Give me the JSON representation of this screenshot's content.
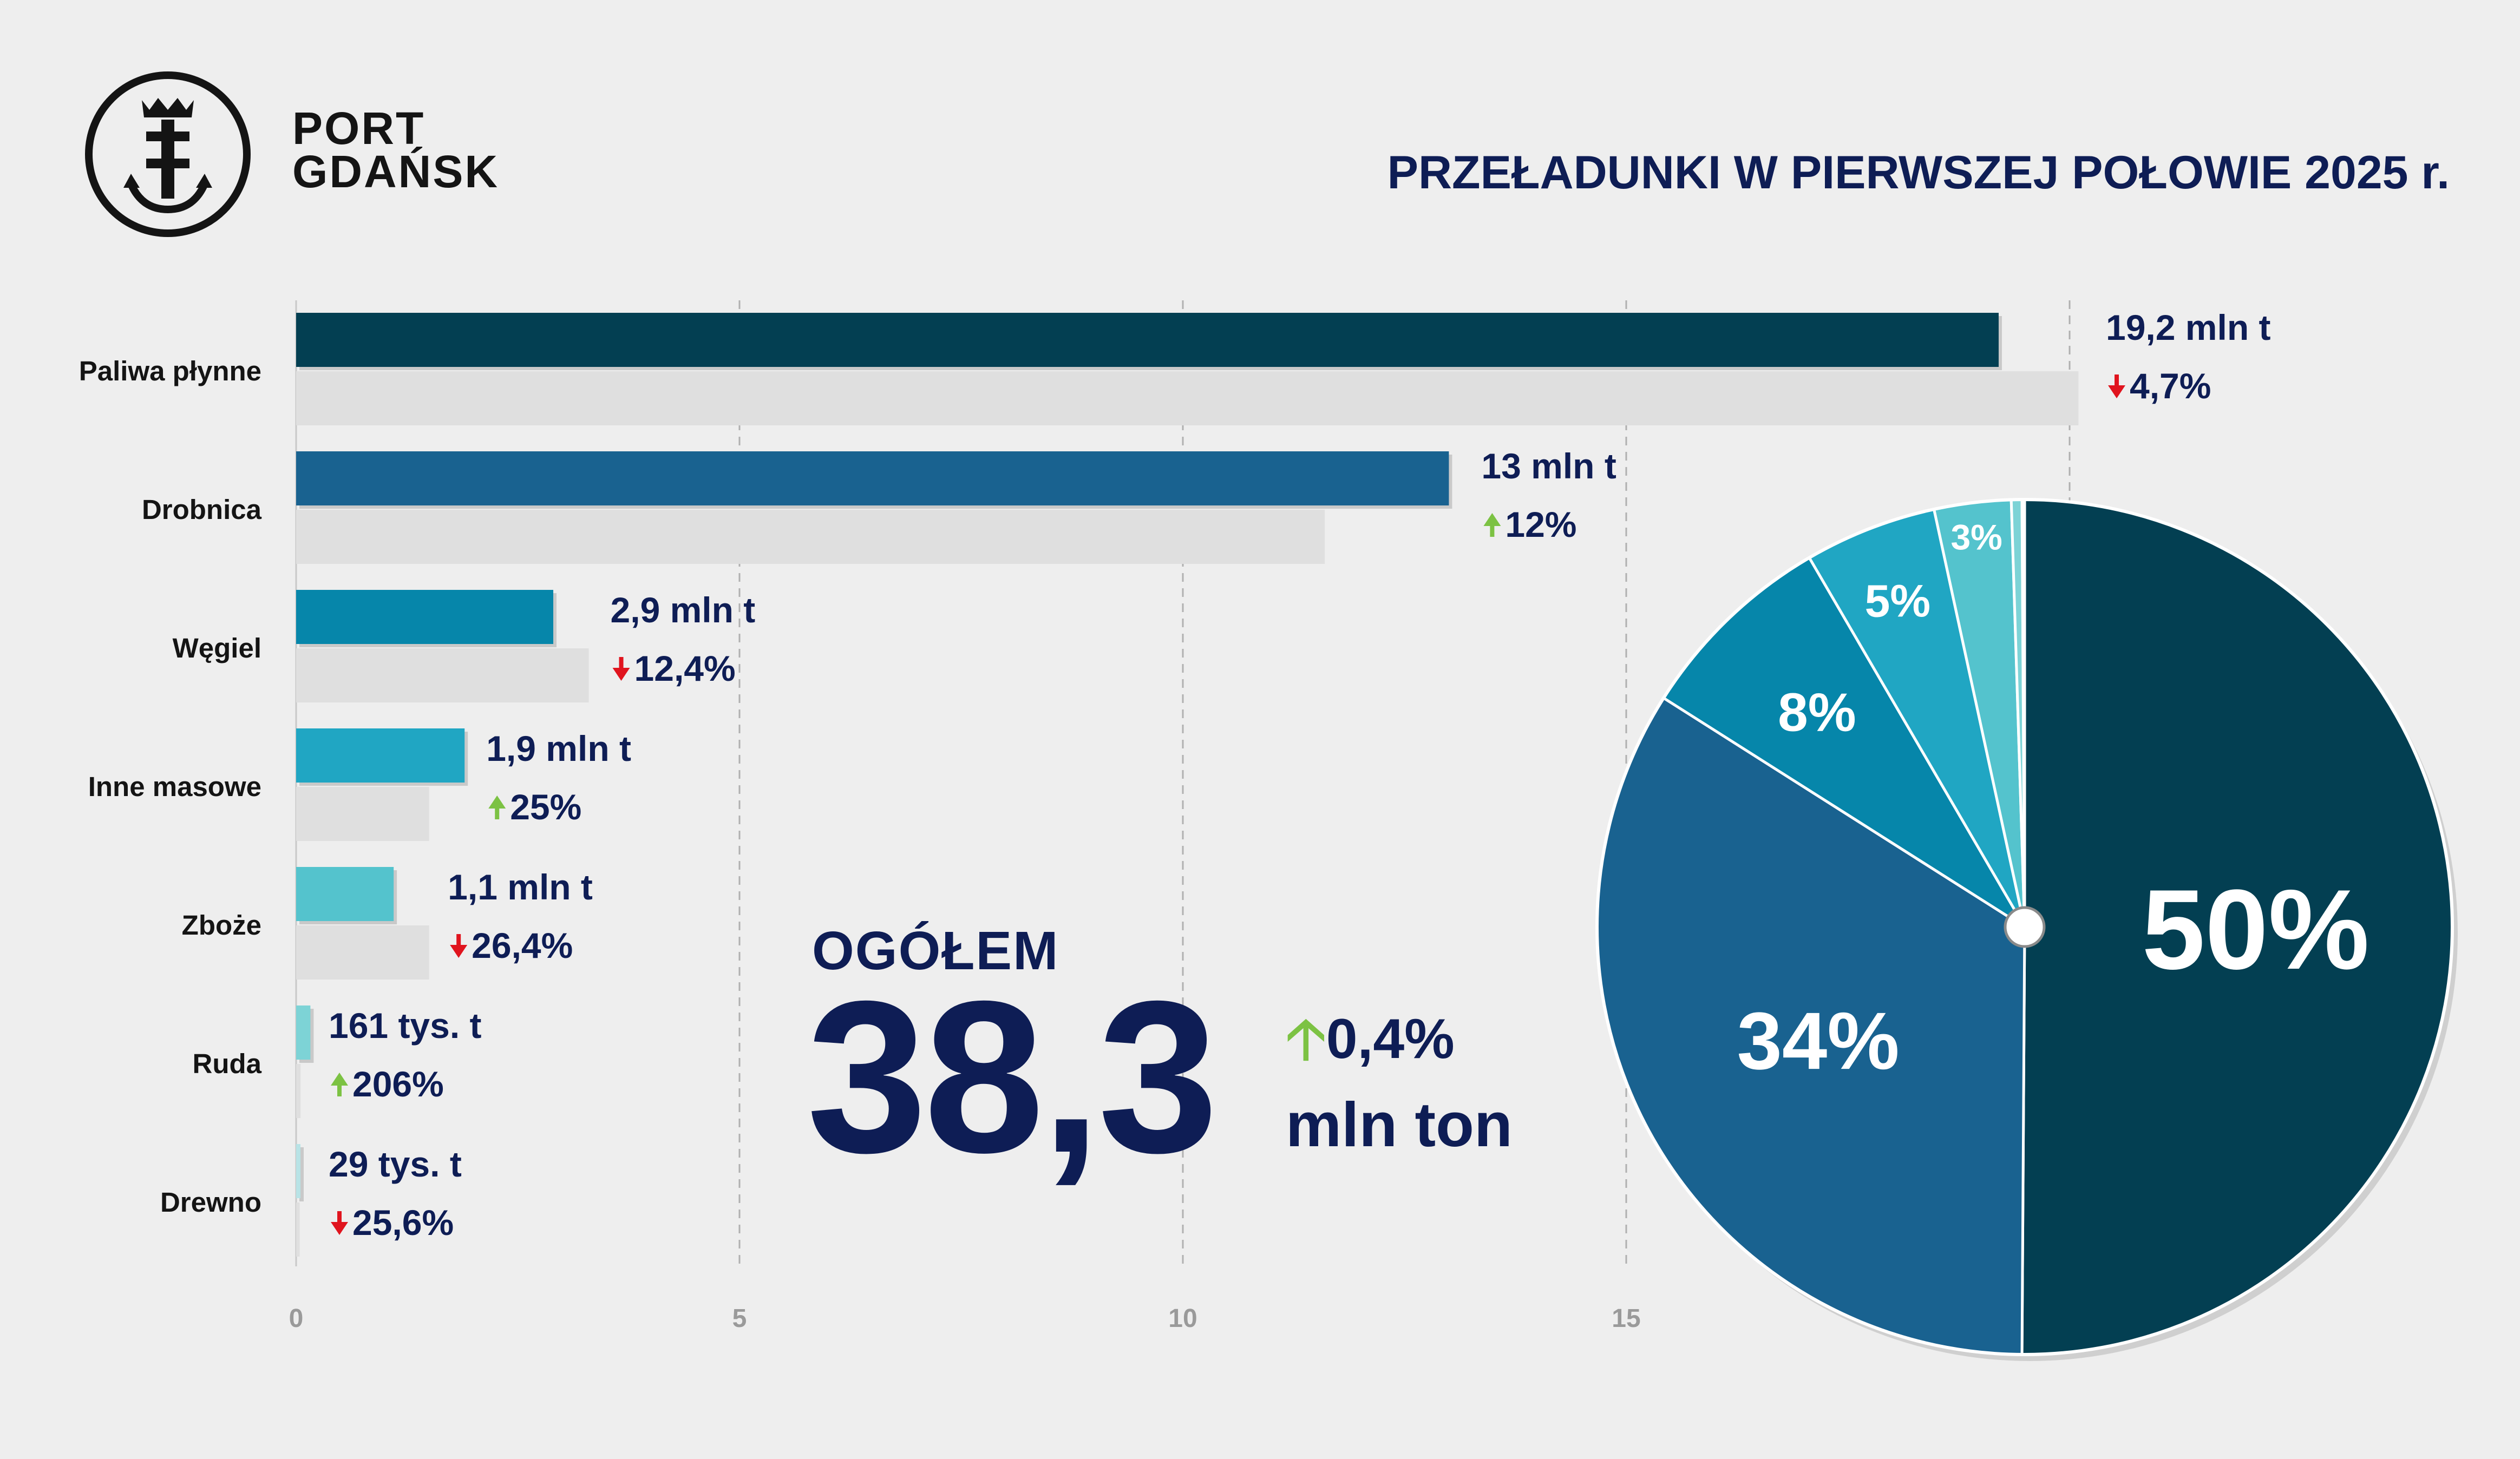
{
  "brand": {
    "line1": "PORT",
    "line2": "GDAŃSK"
  },
  "title": "PRZEŁADUNKI W PIERWSZEJ POŁOWIE 2025 r.",
  "total": {
    "label": "OGÓŁEM",
    "value": "38,3",
    "change": "0,4%",
    "change_direction": "up",
    "unit": "mln ton"
  },
  "colors": {
    "paliwa": "#033f52",
    "drobnica": "#196290",
    "wegiel": "#0686aa",
    "inne": "#20a6c3",
    "zboze": "#54c3cd",
    "ruda": "#7dd3d6",
    "drewno": "#b8e3e6",
    "prev_bar": "#dfdfdf",
    "up_arrow": "#7cc243",
    "down_arrow": "#e0141e",
    "text_navy": "#0e1d55"
  },
  "chart_data": [
    {
      "type": "bar",
      "orientation": "horizontal",
      "categories": [
        "Paliwa płynne",
        "Drobnica",
        "Węgiel",
        "Inne masowe",
        "Zboże",
        "Ruda",
        "Drewno"
      ],
      "series": [
        {
          "values": [
            19.2,
            13.0,
            2.9,
            1.9,
            1.1,
            0.161,
            0.029
          ],
          "colors": [
            "#033f52",
            "#196290",
            "#0686aa",
            "#20a6c3",
            "#54c3cd",
            "#7dd3d6",
            "#b8e3e6"
          ]
        },
        {
          "values": [
            20.1,
            11.6,
            3.3,
            1.5,
            1.5,
            0.05,
            0.04
          ],
          "colors": [
            "#dfdfdf",
            "#dfdfdf",
            "#dfdfdf",
            "#dfdfdf",
            "#dfdfdf",
            "#dfdfdf",
            "#dfdfdf"
          ]
        }
      ],
      "value_labels": [
        "19,2 mln t",
        "13 mln t",
        "2,9 mln t",
        "1,9 mln t",
        "1,1 mln t",
        "161 tys. t",
        "29 tys. t"
      ],
      "change_labels": [
        "4,7%",
        "12%",
        "12,4%",
        "25%",
        "26,4%",
        "206%",
        "25,6%"
      ],
      "change_directions": [
        "down",
        "up",
        "down",
        "up",
        "down",
        "up",
        "down"
      ],
      "xticks": [
        0,
        5,
        10,
        15
      ],
      "xtick_labels": [
        "0",
        "5",
        "10",
        "15"
      ],
      "xlim": [
        0,
        20
      ],
      "grid": "vertical dashed"
    },
    {
      "type": "pie",
      "labels": [
        "Paliwa płynne",
        "Drobnica",
        "Węgiel",
        "Inne masowe",
        "Zboże",
        "Ruda",
        "Drewno"
      ],
      "values": [
        50.1,
        33.9,
        7.6,
        5.0,
        2.9,
        0.4,
        0.1
      ],
      "slice_labels": [
        "50%",
        "34%",
        "8%",
        "5%",
        "3%",
        "",
        ""
      ],
      "colors": [
        "#033f52",
        "#196290",
        "#0686aa",
        "#20a6c3",
        "#54c3cd",
        "#7dd3d6",
        "#b8e3e6"
      ]
    }
  ]
}
